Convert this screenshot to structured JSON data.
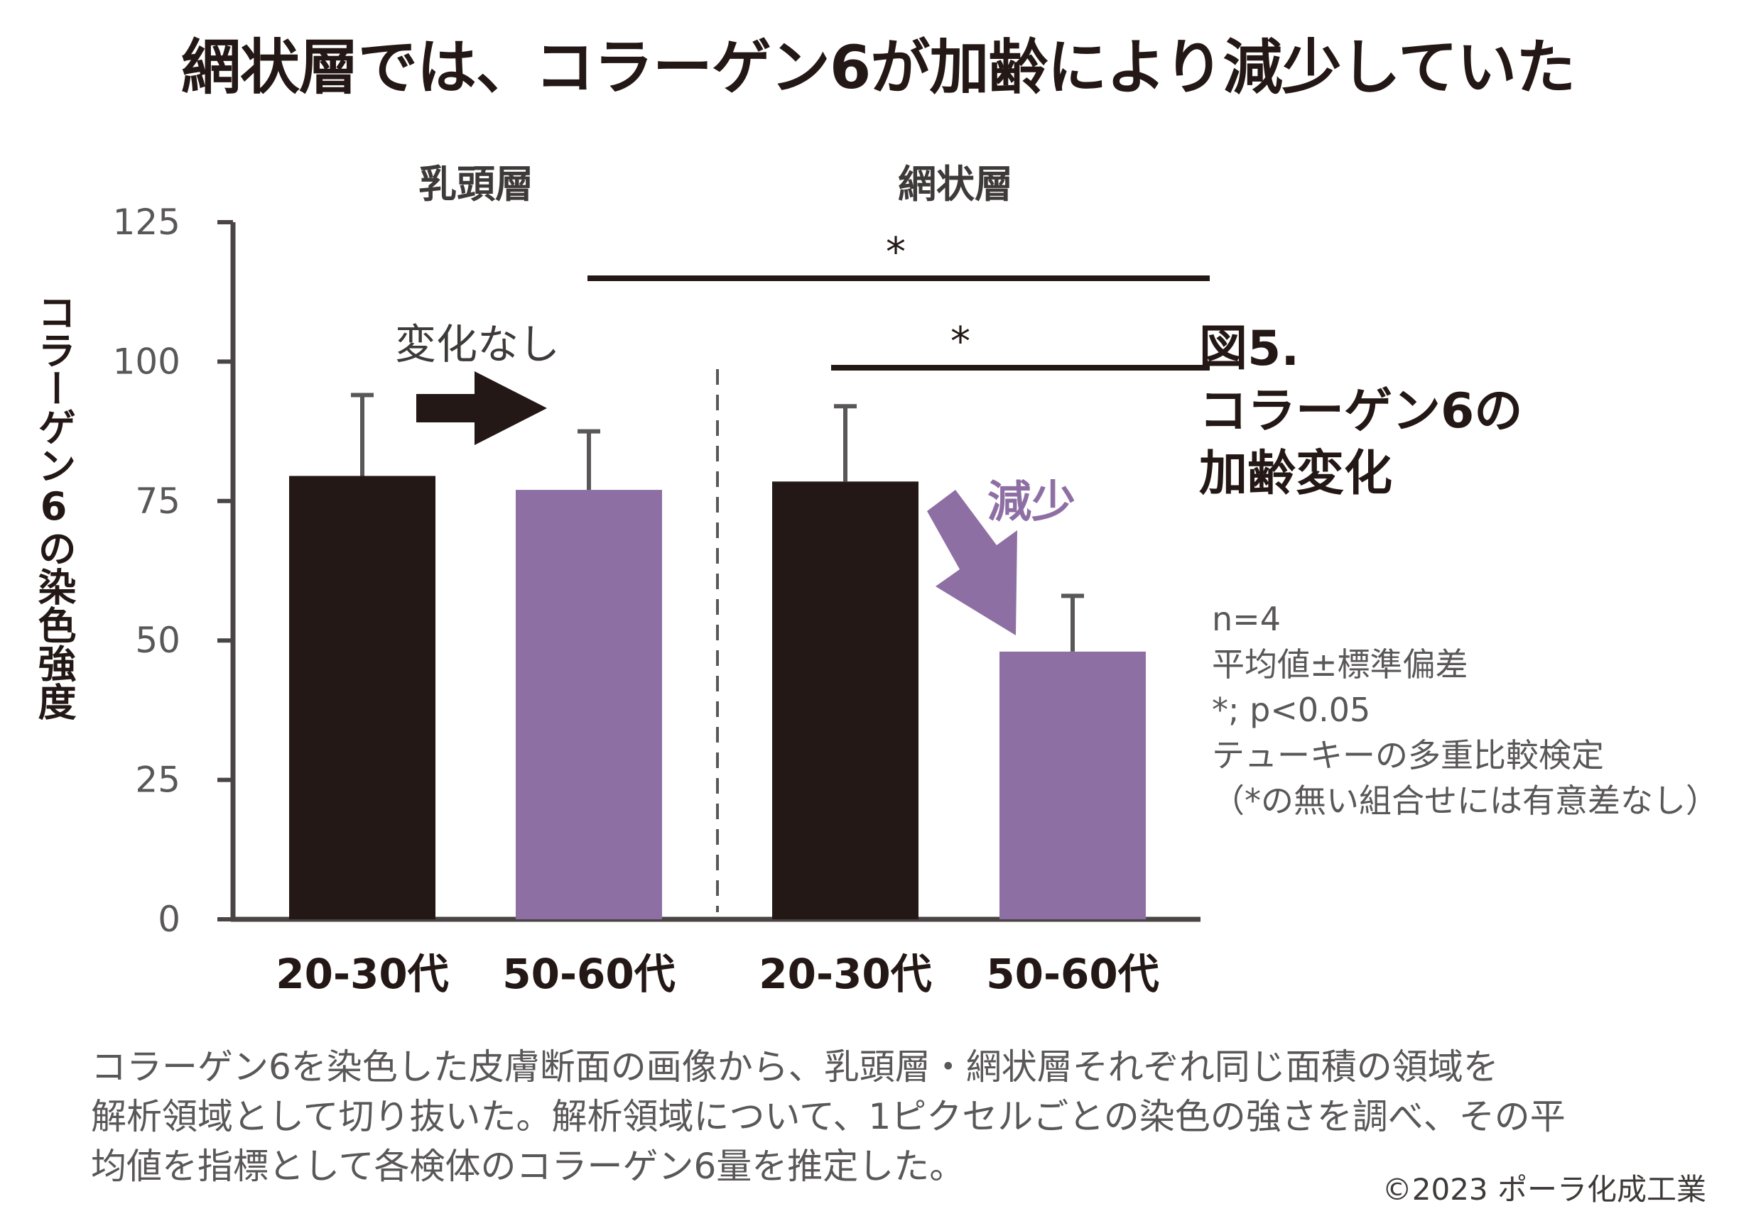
{
  "title": "網状層では、コラーゲン6が加齢により減少していた",
  "figure_label": {
    "line1": "図5.",
    "line2": "コラーゲン6の",
    "line3": "加齢変化"
  },
  "notes": [
    "n=4",
    "平均値±標準偏差",
    "*; p<0.05",
    "テューキーの多重比較検定",
    "（*の無い組合せには有意差なし）"
  ],
  "caption": [
    "コラーゲン6を染色した皮膚断面の画像から、乳頭層・網状層それぞれ同じ面積の領域を",
    "解析領域として切り抜いた。解析領域について、1ピクセルごとの染色の強さを調べ、その平",
    "均値を指標として各検体のコラーゲン6量を推定した。"
  ],
  "copyright": "©2023 ポーラ化成工業",
  "colors": {
    "young": "#231815",
    "old": "#8E6FA4",
    "axis": "#4a4444",
    "text": "#231815",
    "note_text": "#595757"
  },
  "chart_data": {
    "type": "bar",
    "ylabel": "コラーゲン6の染色強度",
    "ylim": [
      0,
      125
    ],
    "yticks": [
      0,
      25,
      50,
      75,
      100,
      125
    ],
    "groups": [
      {
        "name": "乳頭層",
        "bars": [
          {
            "category": "20-30代",
            "value": 79.5,
            "error": 14.5,
            "series": "young"
          },
          {
            "category": "50-60代",
            "value": 77,
            "error": 10.5,
            "series": "old"
          }
        ]
      },
      {
        "name": "網状層",
        "bars": [
          {
            "category": "20-30代",
            "value": 78.5,
            "error": 13.5,
            "series": "young"
          },
          {
            "category": "50-60代",
            "value": 48,
            "error": 10,
            "series": "old"
          }
        ]
      }
    ],
    "annotations": {
      "no_change": "変化なし",
      "decrease": "減少"
    },
    "significance": [
      {
        "label": "*",
        "from": [
          0,
          1
        ],
        "to": [
          1,
          1
        ]
      },
      {
        "label": "*",
        "from": [
          1,
          0
        ],
        "to": [
          1,
          1
        ]
      }
    ]
  }
}
